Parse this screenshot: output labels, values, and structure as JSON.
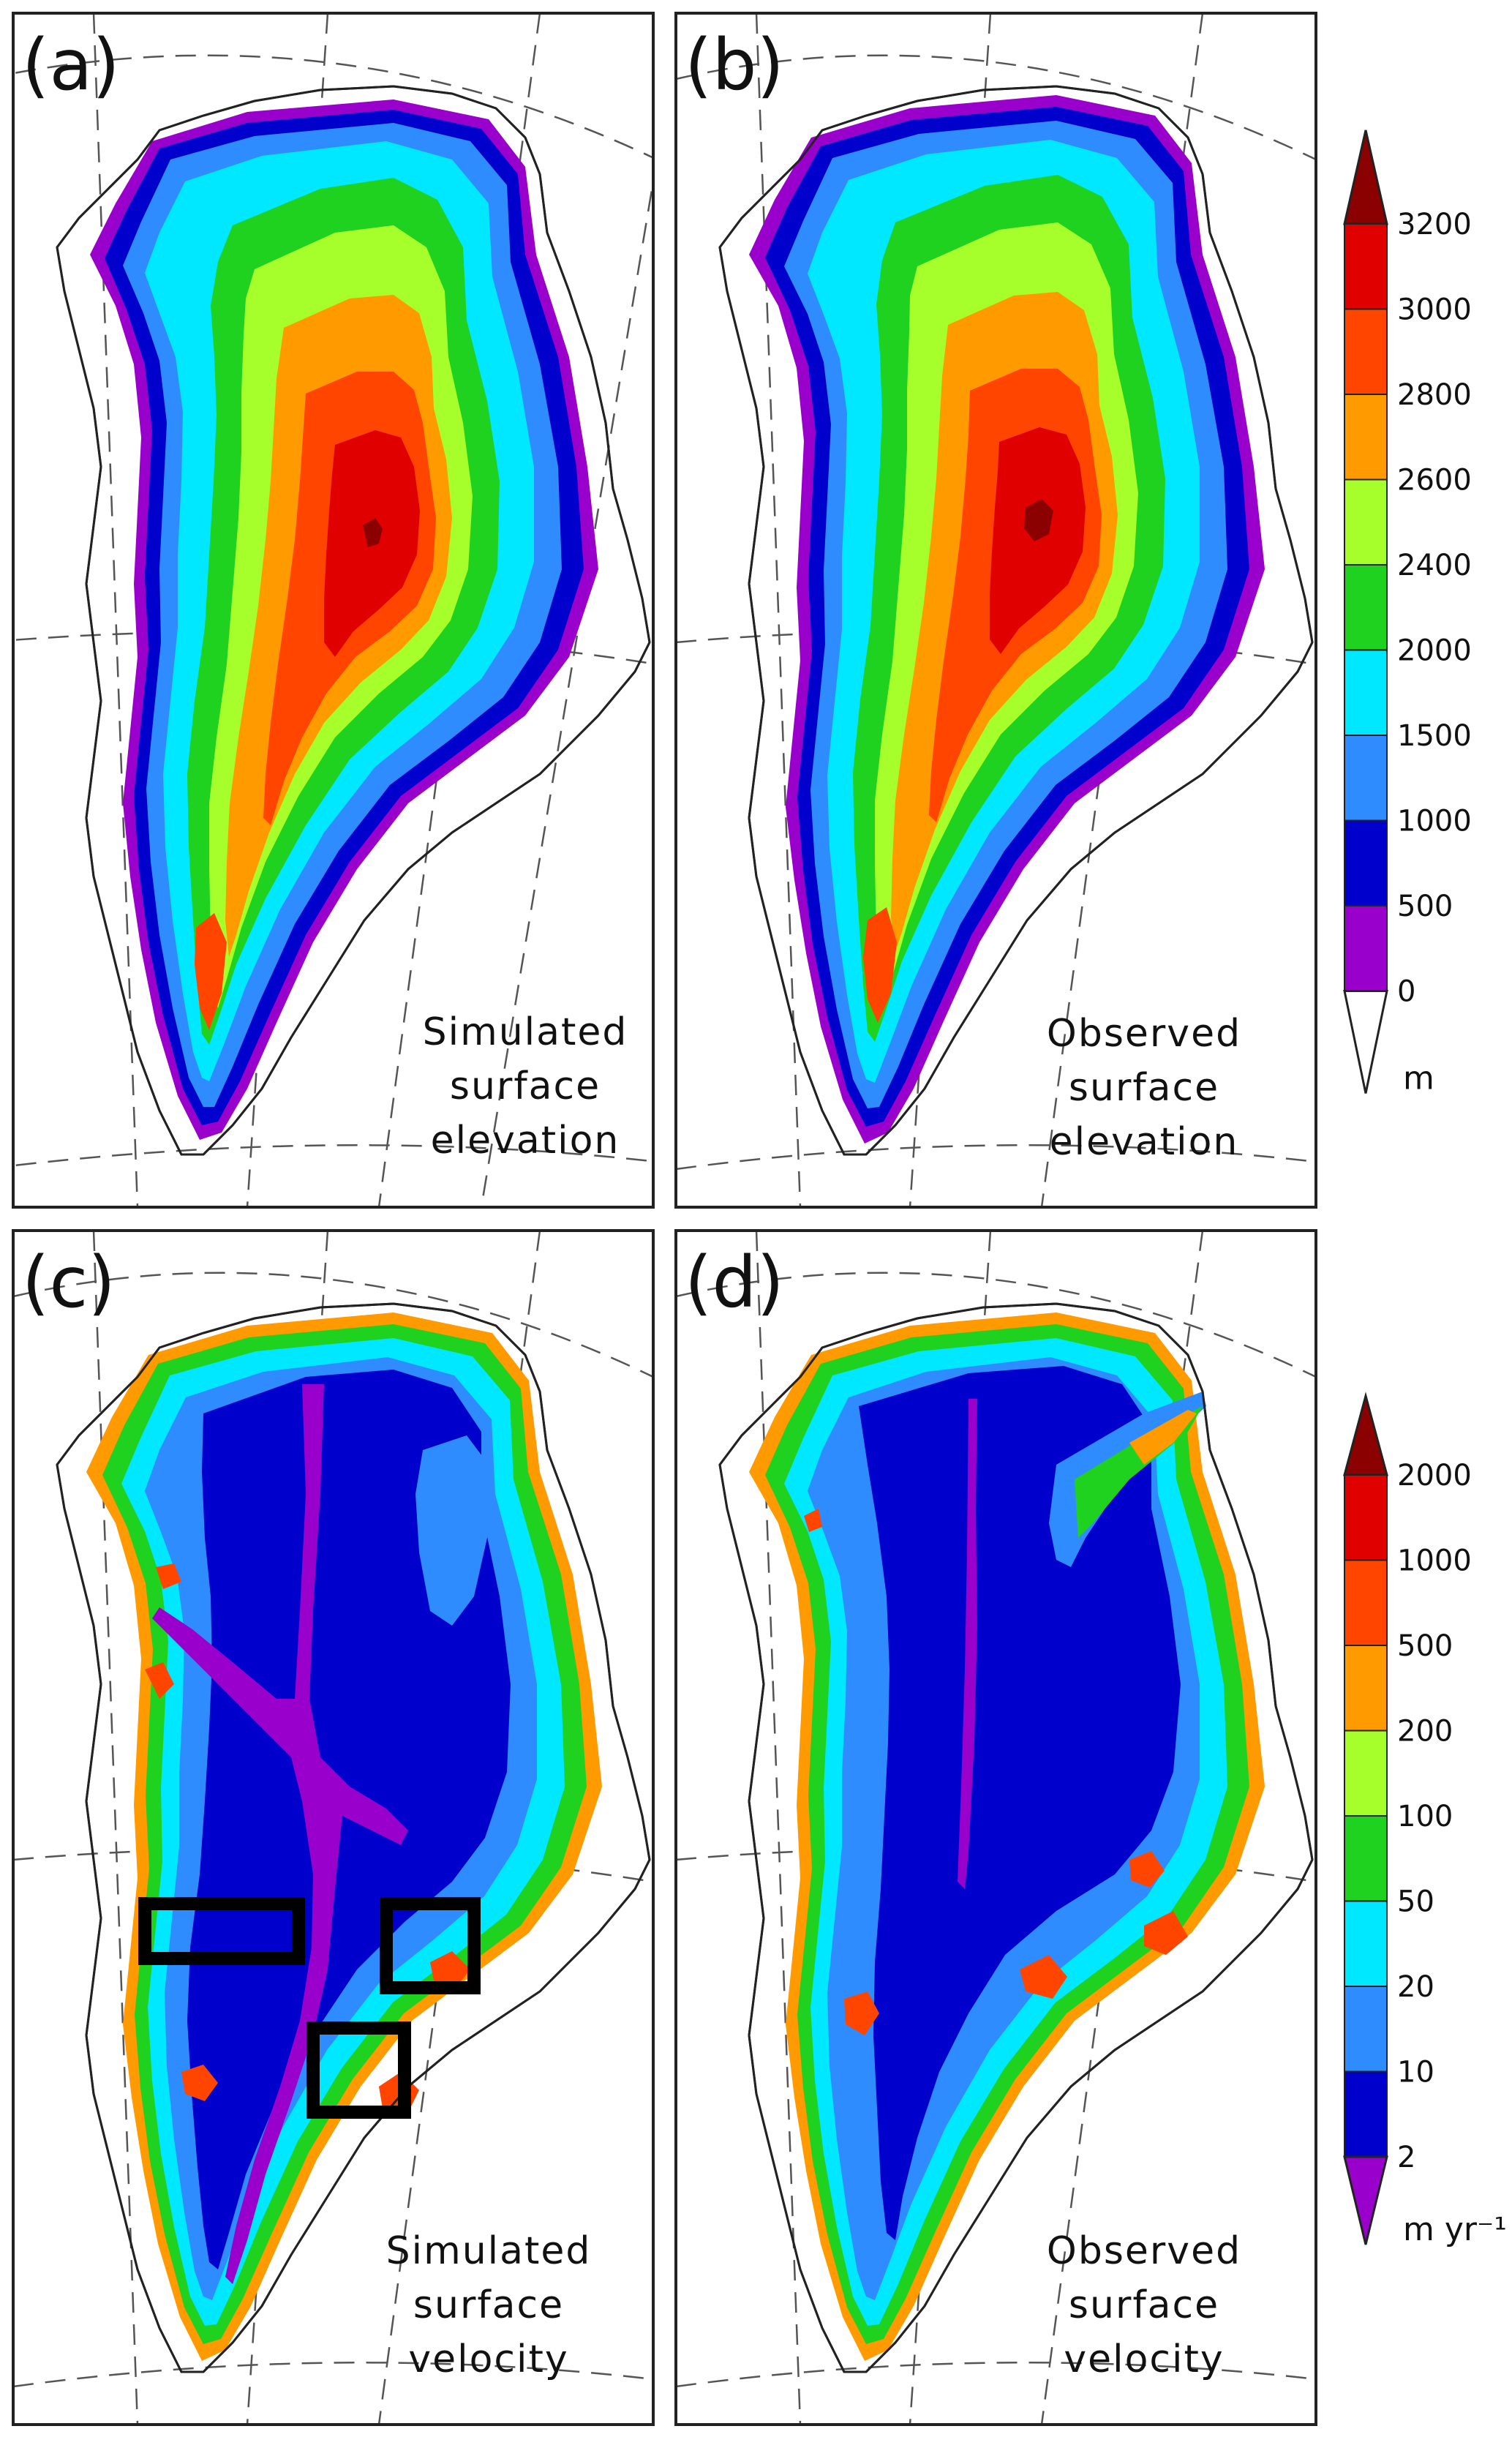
{
  "panels": [
    {
      "id": "a",
      "label": "(a)",
      "caption": [
        "Simulated",
        "surface",
        "elevation"
      ],
      "field": "elevation",
      "source": "simulated"
    },
    {
      "id": "b",
      "label": "(b)",
      "caption": [
        "Observed",
        "surface",
        "elevation"
      ],
      "field": "elevation",
      "source": "observed"
    },
    {
      "id": "c",
      "label": "(c)",
      "caption": [
        "Simulated",
        "surface",
        "velocity"
      ],
      "field": "velocity",
      "source": "simulated"
    },
    {
      "id": "d",
      "label": "(d)",
      "caption": [
        "Observed",
        "surface",
        "velocity"
      ],
      "field": "velocity",
      "source": "observed"
    }
  ],
  "colorbars": {
    "elevation": {
      "unit": "m",
      "ticks": [
        "3200",
        "3000",
        "2800",
        "2600",
        "2400",
        "2000",
        "1500",
        "1000",
        "500",
        "0"
      ],
      "colors": [
        "#8b0000",
        "#e00000",
        "#ff4500",
        "#ff9a00",
        "#a6ff2a",
        "#1fd21f",
        "#00e8ff",
        "#2f8cff",
        "#0000cc",
        "#9900cc",
        "#ffffff"
      ]
    },
    "velocity": {
      "unit": "m yr⁻¹",
      "ticks": [
        "2000",
        "1000",
        "500",
        "200",
        "100",
        "50",
        "20",
        "10",
        "2"
      ],
      "colors": [
        "#8b0000",
        "#e00000",
        "#ff4500",
        "#ff9a00",
        "#a6ff2a",
        "#1fd21f",
        "#00e8ff",
        "#2f8cff",
        "#0000cc",
        "#9900cc"
      ]
    }
  }
}
